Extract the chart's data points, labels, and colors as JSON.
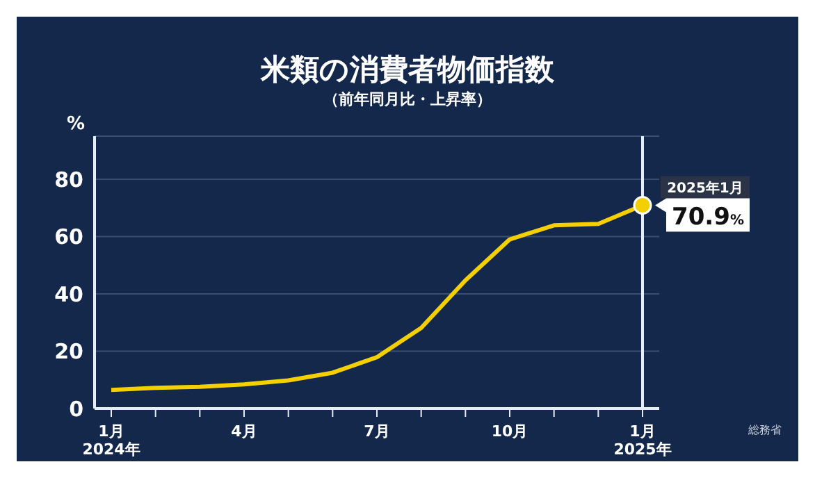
{
  "chart_data": {
    "type": "line",
    "title": "米類の消費者物価指数",
    "subtitle": "（前年同月比・上昇率）",
    "ylabel": "%",
    "categories": [
      "1月\n2024年",
      null,
      null,
      "4月",
      null,
      null,
      "7月",
      null,
      null,
      "10月",
      null,
      null,
      "1月\n2025年"
    ],
    "series": [
      {
        "color": "#f5d000",
        "values": [
          6.5,
          7.2,
          7.6,
          8.4,
          9.8,
          12.5,
          17.9,
          28.1,
          44.7,
          59.0,
          63.9,
          64.4,
          70.9
        ],
        "value_labels": [
          null,
          null,
          null,
          null,
          null,
          null,
          null,
          null,
          null,
          null,
          null,
          null,
          "70.9%"
        ]
      }
    ],
    "ylim": [
      0,
      95
    ],
    "yticks": [
      0,
      20,
      40,
      60,
      80
    ],
    "grid": "y",
    "marker": "none",
    "line_style": "solid",
    "ref_lines": [
      {
        "axis": "x",
        "value": "1月\n2025年",
        "color": "#e8ecf4"
      }
    ],
    "annotations": [
      {
        "text": "2025年1月",
        "x": "1月\n2025年",
        "y": 70.9
      },
      "総務省"
    ]
  }
}
